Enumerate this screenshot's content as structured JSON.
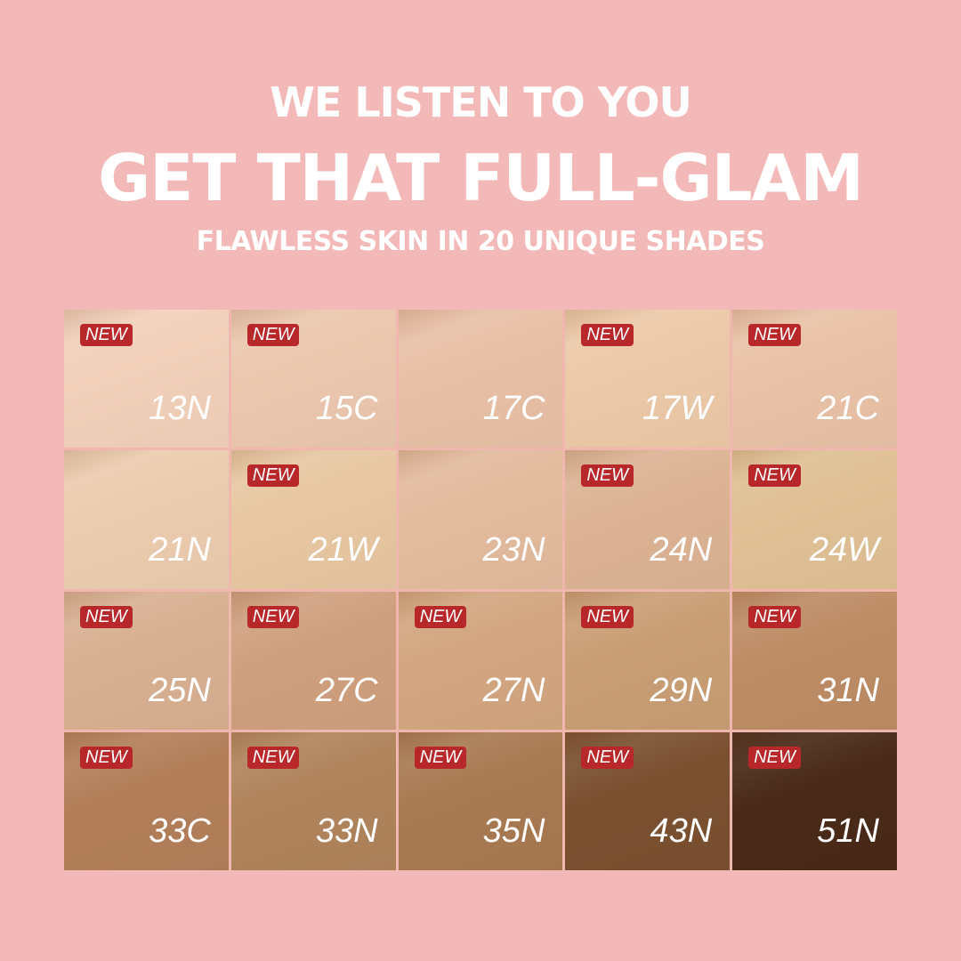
{
  "header": {
    "line1": "WE LISTEN TO YOU",
    "line2": "GET THAT FULL-GLAM",
    "line3": "FLAWLESS SKIN IN 20 UNIQUE SHADES"
  },
  "badge_label": "NEW",
  "badge_color": "#b8282a",
  "background_color": "#f3b8b8",
  "shades": [
    {
      "code": "13N",
      "new": true,
      "color": "#f2d0ba"
    },
    {
      "code": "15C",
      "new": true,
      "color": "#ebc7ae"
    },
    {
      "code": "17C",
      "new": false,
      "color": "#e8c0a6"
    },
    {
      "code": "17W",
      "new": true,
      "color": "#ecc9a8"
    },
    {
      "code": "21C",
      "new": true,
      "color": "#e9c2a7"
    },
    {
      "code": "21N",
      "new": false,
      "color": "#ecccaf"
    },
    {
      "code": "21W",
      "new": true,
      "color": "#e8c7a2"
    },
    {
      "code": "23N",
      "new": false,
      "color": "#e3bb9e"
    },
    {
      "code": "24N",
      "new": true,
      "color": "#dcb394"
    },
    {
      "code": "24W",
      "new": true,
      "color": "#e0c095"
    },
    {
      "code": "25N",
      "new": true,
      "color": "#d8b092"
    },
    {
      "code": "27C",
      "new": true,
      "color": "#cfa07f"
    },
    {
      "code": "27N",
      "new": true,
      "color": "#d2a680"
    },
    {
      "code": "29N",
      "new": true,
      "color": "#c99e75"
    },
    {
      "code": "31N",
      "new": true,
      "color": "#bd8c65"
    },
    {
      "code": "33C",
      "new": true,
      "color": "#b37f5a"
    },
    {
      "code": "33N",
      "new": true,
      "color": "#b0845c"
    },
    {
      "code": "35N",
      "new": true,
      "color": "#a87a52"
    },
    {
      "code": "43N",
      "new": true,
      "color": "#7a5030"
    },
    {
      "code": "51N",
      "new": true,
      "color": "#4a2a18"
    }
  ]
}
